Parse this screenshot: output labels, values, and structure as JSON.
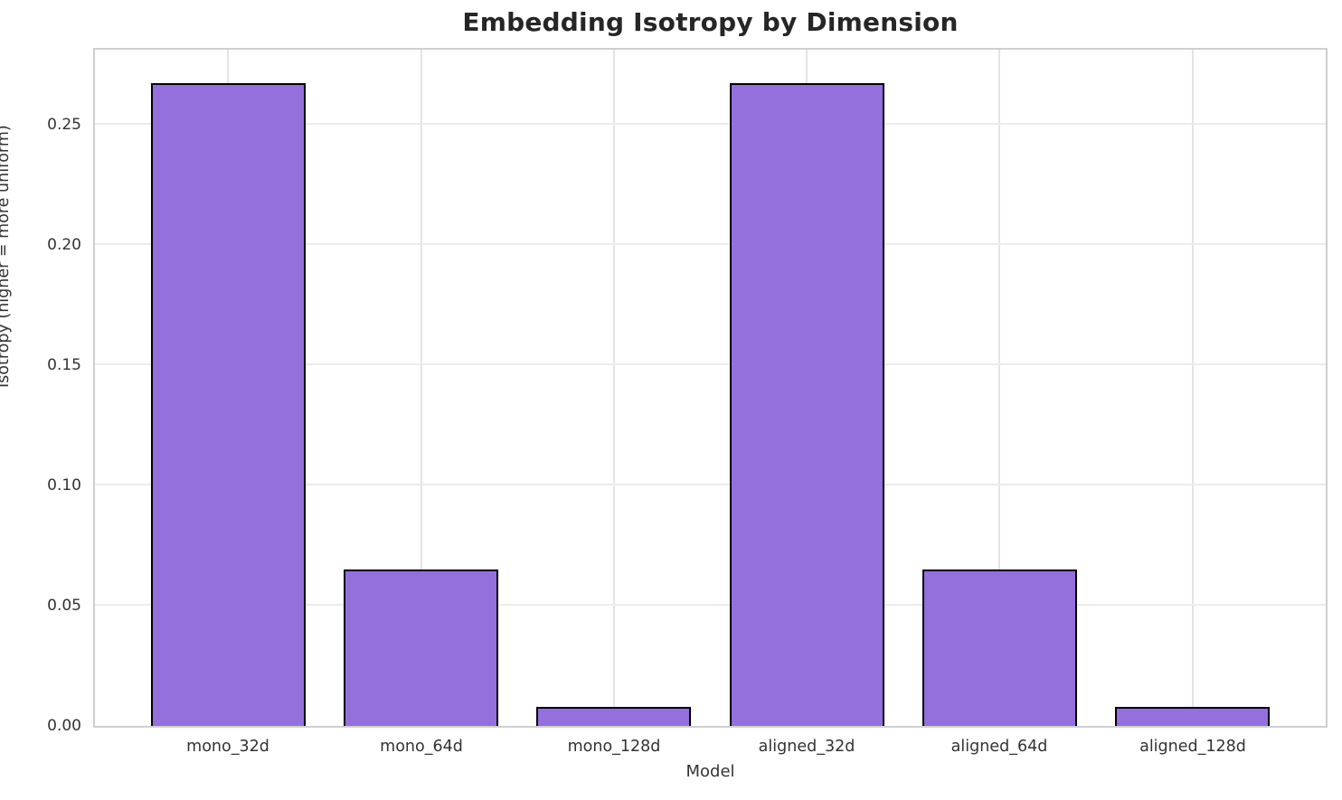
{
  "chart_data": {
    "type": "bar",
    "title": "Embedding Isotropy by Dimension",
    "xlabel": "Model",
    "ylabel": "Isotropy (higher = more uniform)",
    "categories": [
      "mono_32d",
      "mono_64d",
      "mono_128d",
      "aligned_32d",
      "aligned_64d",
      "aligned_128d"
    ],
    "values": [
      0.267,
      0.065,
      0.008,
      0.267,
      0.065,
      0.008
    ],
    "ylim": [
      0,
      0.281
    ],
    "yticks": [
      0.0,
      0.05,
      0.1,
      0.15,
      0.2,
      0.25
    ],
    "ytick_labels": [
      "0.00",
      "0.05",
      "0.10",
      "0.15",
      "0.20",
      "0.25"
    ],
    "grid": true,
    "legend": "none",
    "bar_color": "#9370DB",
    "bar_edge_color": "#000000",
    "grid_color": "#e7e7e7",
    "spine_color": "#cfcfcf",
    "text_color": "#333333",
    "title_color": "#262626"
  }
}
